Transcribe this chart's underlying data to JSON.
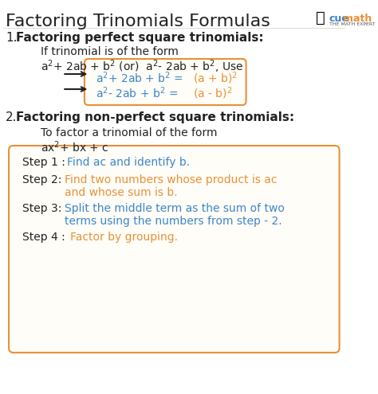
{
  "title": "Factoring Trinomials Formulas",
  "title_fontsize": 16,
  "bg_color": "#ffffff",
  "section1_heading": "Factoring perfect square trinomials:",
  "section1_intro1": "If trinomial is of the form",
  "section1_intro2": "a²+ 2ab + b² (or)  a²- 2ab + b², Use",
  "formula1_blue": "a²+ 2ab + b² = ",
  "formula1_orange": "(a + b)²",
  "formula2_blue": "a²- 2ab + b² = ",
  "formula2_orange": "(a - b)²",
  "section2_heading": "Factoring non-perfect square trinomials:",
  "section2_intro1": "To factor a trinomial of the form",
  "section2_intro2": "ax²+ bx + c",
  "step1_black": "Step 1 : ",
  "step1_blue": "Find ac and identify b.",
  "step2_black": "Step 2: ",
  "step2_orange": "Find two numbers whose product is ac\nand whose sum is b.",
  "step3_black": "Step 3: ",
  "step3_blue": "Split the middle term as the sum of two\nterms using the numbers from step - 2.",
  "step4_black": "Step 4 : ",
  "step4_orange": "Factor by grouping.",
  "blue_color": "#3d85c8",
  "orange_color": "#e69138",
  "black_color": "#222222",
  "gray_color": "#555555",
  "box_border_orange": "#e69138",
  "logo_blue": "#3d85c8",
  "logo_orange": "#e69138"
}
